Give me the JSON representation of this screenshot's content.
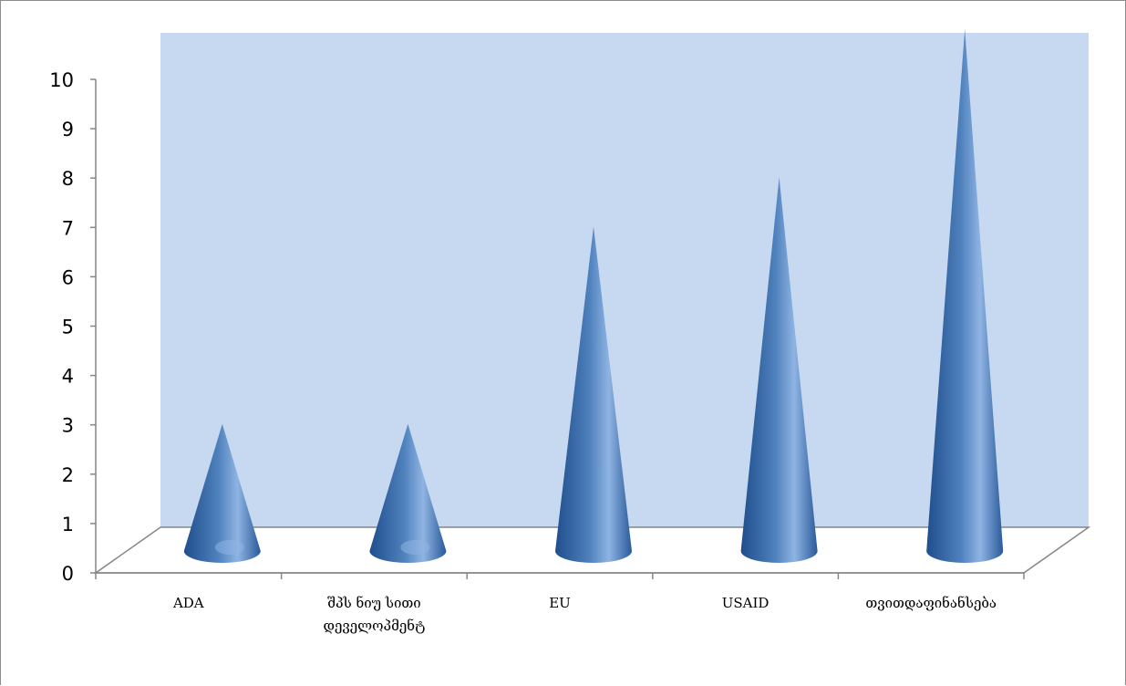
{
  "colors": {
    "back_wall": "#c6d9f0",
    "cone_dark": "#1f4e8c",
    "cone_mid": "#4f81bd",
    "cone_light": "#8fb4e3",
    "axis": "#868686"
  },
  "chart_data": {
    "type": "bar",
    "bar_shape": "cone-3d",
    "categories": [
      "ADA",
      "შპს ნიუ სითი დეველოპმენტ",
      "EU",
      "USAID",
      "თვითდაფინანსება"
    ],
    "category_lines": [
      [
        "ADA"
      ],
      [
        "შპს ნიუ სითი",
        "დეველოპმენტ"
      ],
      [
        "EU"
      ],
      [
        "USAID"
      ],
      [
        "თვითდაფინანსება"
      ]
    ],
    "values": [
      2,
      2,
      6,
      7,
      10
    ],
    "ylim": [
      0,
      10
    ],
    "yticks": [
      "0",
      "1",
      "2",
      "3",
      "4",
      "5",
      "6",
      "7",
      "8",
      "9",
      "10"
    ],
    "grid": false,
    "legend": "none"
  }
}
